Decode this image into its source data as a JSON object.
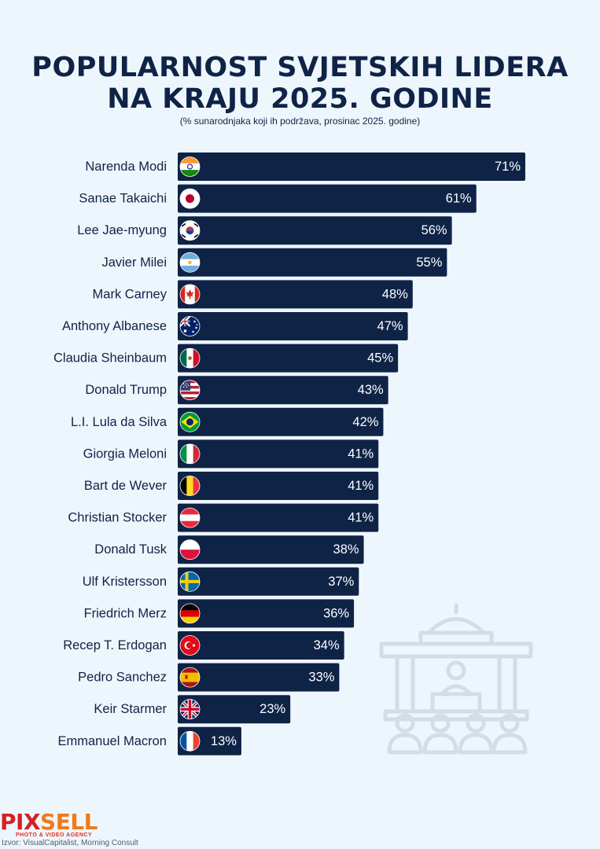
{
  "header": {
    "title_line1": "POPULARNOST SVJETSKIH LIDERA",
    "title_line2": "NA KRAJU 2025. GODINE",
    "subtitle": "(% sunarodnjaka koji ih podržava, prosinac 2025. godine)"
  },
  "footer": {
    "logo_part1": "PIX",
    "logo_part2": "SELL",
    "logo_tagline": "PHOTO & VIDEO AGENCY",
    "source": "Izvor: VisualCapitalist, Morning Consult"
  },
  "colors": {
    "bar": "#0f2347",
    "label": "#0f2347",
    "background": "#eef6fd",
    "illustration": "#d3dde8"
  },
  "chart_data": {
    "type": "bar",
    "orientation": "horizontal",
    "unit": "%",
    "categories": [
      "Narenda Modi",
      "Sanae Takaichi",
      "Lee Jae-myung",
      "Javier Milei",
      "Mark Carney",
      "Anthony Albanese",
      "Claudia Sheinbaum",
      "Donald Trump",
      "L.I. Lula da Silva",
      "Giorgia Meloni",
      "Bart de Wever",
      "Christian Stocker",
      "Donald Tusk",
      "Ulf Kristersson",
      "Friedrich Merz",
      "Recep T. Erdogan",
      "Pedro Sanchez",
      "Keir Starmer",
      "Emmanuel Macron"
    ],
    "values": [
      71,
      61,
      56,
      55,
      48,
      47,
      45,
      43,
      42,
      41,
      41,
      41,
      38,
      37,
      36,
      34,
      33,
      23,
      13
    ],
    "data_labels": [
      "71%",
      "61%",
      "56%",
      "55%",
      "48%",
      "47%",
      "45%",
      "43%",
      "42%",
      "41%",
      "41%",
      "41%",
      "38%",
      "37%",
      "36%",
      "34%",
      "33%",
      "23%",
      "13%"
    ],
    "flags": [
      "india-flag-icon",
      "japan-flag-icon",
      "south-korea-flag-icon",
      "argentina-flag-icon",
      "canada-flag-icon",
      "australia-flag-icon",
      "mexico-flag-icon",
      "usa-flag-icon",
      "brazil-flag-icon",
      "italy-flag-icon",
      "belgium-flag-icon",
      "austria-flag-icon",
      "poland-flag-icon",
      "sweden-flag-icon",
      "germany-flag-icon",
      "turkey-flag-icon",
      "spain-flag-icon",
      "uk-flag-icon",
      "france-flag-icon"
    ],
    "title": "POPULARNOST SVJETSKIH LIDERA NA KRAJU 2025. GODINE",
    "xlabel": "",
    "ylabel": "",
    "xlim": [
      0,
      71
    ],
    "grid": false,
    "legend": "none"
  }
}
